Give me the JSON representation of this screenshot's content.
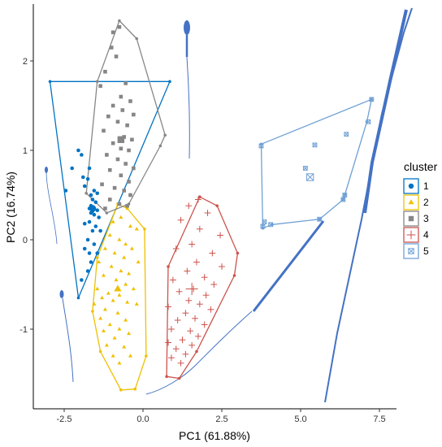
{
  "chart_data": {
    "type": "scatter",
    "title": "",
    "xlabel": "PC1 (61.88%)",
    "ylabel": "PC2 (16.74%)",
    "xlim": [
      -3.4,
      7.9
    ],
    "ylim": [
      -1.85,
      2.5
    ],
    "x_ticks": [
      -2.5,
      0.0,
      2.5,
      5.0,
      7.5
    ],
    "x_tick_labels": [
      "-2.5",
      "0.0",
      "2.5",
      "5.0",
      "7.5"
    ],
    "y_ticks": [
      -1,
      0,
      1,
      2
    ],
    "y_tick_labels": [
      "-1",
      "0",
      "1",
      "2"
    ],
    "grid": false,
    "legend": {
      "title": "cluster",
      "placement": "right"
    },
    "series": [
      {
        "name": "1",
        "color": "#0073C2",
        "marker": "circle",
        "points": [
          [
            -2.05,
            1.0
          ],
          [
            -1.95,
            0.95
          ],
          [
            -2.25,
            0.8
          ],
          [
            -1.7,
            0.8
          ],
          [
            -1.9,
            0.7
          ],
          [
            -1.75,
            0.68
          ],
          [
            -1.85,
            0.6
          ],
          [
            -2.45,
            0.55
          ],
          [
            -1.55,
            0.55
          ],
          [
            -1.45,
            0.52
          ],
          [
            -1.65,
            0.5
          ],
          [
            -1.6,
            0.45
          ],
          [
            -1.5,
            0.42
          ],
          [
            -1.65,
            0.38
          ],
          [
            -1.55,
            0.35
          ],
          [
            -1.7,
            0.35
          ],
          [
            -1.6,
            0.32
          ],
          [
            -1.45,
            0.33
          ],
          [
            -1.65,
            0.3
          ],
          [
            -1.55,
            0.28
          ],
          [
            -1.4,
            0.25
          ],
          [
            -1.7,
            0.2
          ],
          [
            -1.85,
            0.18
          ],
          [
            -1.5,
            0.15
          ],
          [
            -1.6,
            0.1
          ],
          [
            -1.35,
            0.1
          ],
          [
            -1.75,
            0.0
          ],
          [
            -1.55,
            -0.05
          ],
          [
            -1.85,
            -0.1
          ],
          [
            -1.7,
            -0.15
          ],
          [
            -1.45,
            -0.15
          ],
          [
            -1.65,
            -0.25
          ],
          [
            -1.75,
            -0.35
          ],
          [
            -1.95,
            -0.45
          ]
        ],
        "centroid": [
          -1.6,
          0.35
        ],
        "hull": [
          [
            -2.95,
            1.77
          ],
          [
            0.85,
            1.77
          ],
          [
            -2.05,
            -0.65
          ],
          [
            -2.95,
            1.77
          ]
        ]
      },
      {
        "name": "2",
        "color": "#EFC000",
        "marker": "triangle",
        "points": [
          [
            -0.5,
            0.38
          ],
          [
            -0.7,
            0.25
          ],
          [
            -0.95,
            0.2
          ],
          [
            -0.4,
            0.15
          ],
          [
            -0.2,
            0.12
          ],
          [
            -1.05,
            0.05
          ],
          [
            -0.75,
            0.0
          ],
          [
            -0.55,
            -0.05
          ],
          [
            -1.2,
            -0.1
          ],
          [
            -0.35,
            -0.1
          ],
          [
            -0.9,
            -0.15
          ],
          [
            -0.6,
            -0.2
          ],
          [
            -1.4,
            -0.25
          ],
          [
            -0.15,
            -0.25
          ],
          [
            -1.0,
            -0.3
          ],
          [
            -0.7,
            -0.35
          ],
          [
            -0.45,
            -0.38
          ],
          [
            -1.25,
            -0.4
          ],
          [
            -0.85,
            -0.45
          ],
          [
            -0.55,
            -0.5
          ],
          [
            -1.45,
            -0.55
          ],
          [
            -0.3,
            -0.55
          ],
          [
            -1.1,
            -0.6
          ],
          [
            -0.75,
            -0.62
          ],
          [
            -1.3,
            -0.65
          ],
          [
            -0.95,
            -0.68
          ],
          [
            -0.5,
            -0.7
          ],
          [
            -1.55,
            -0.72
          ],
          [
            -0.2,
            -0.72
          ],
          [
            -1.2,
            -0.78
          ],
          [
            -0.8,
            -0.82
          ],
          [
            -1.35,
            -0.88
          ],
          [
            -0.55,
            -0.9
          ],
          [
            -1.05,
            -0.95
          ],
          [
            -0.75,
            -1.0
          ],
          [
            -1.25,
            -1.02
          ],
          [
            -0.45,
            -1.05
          ],
          [
            -0.9,
            -1.1
          ],
          [
            -1.15,
            -1.18
          ],
          [
            -0.6,
            -1.2
          ],
          [
            -0.95,
            -1.3
          ],
          [
            -0.4,
            -1.3
          ],
          [
            -0.75,
            -1.38
          ]
        ],
        "centroid": [
          -0.8,
          -0.55
        ],
        "hull": [
          [
            -0.8,
            0.4
          ],
          [
            -0.5,
            0.35
          ],
          [
            0.05,
            0.12
          ],
          [
            0.1,
            -1.3
          ],
          [
            -0.25,
            -1.67
          ],
          [
            -0.7,
            -1.68
          ],
          [
            -1.35,
            -1.25
          ],
          [
            -1.6,
            -0.8
          ],
          [
            -1.45,
            -0.2
          ],
          [
            -0.8,
            0.4
          ]
        ]
      },
      {
        "name": "3",
        "color": "#868686",
        "marker": "square",
        "points": [
          [
            -0.75,
            2.38
          ],
          [
            -0.95,
            2.32
          ],
          [
            -1.0,
            2.15
          ],
          [
            -0.85,
            2.05
          ],
          [
            -1.2,
            1.88
          ],
          [
            -0.55,
            1.75
          ],
          [
            -1.35,
            1.72
          ],
          [
            -0.7,
            1.6
          ],
          [
            -0.4,
            1.55
          ],
          [
            -0.95,
            1.5
          ],
          [
            -0.65,
            1.45
          ],
          [
            -0.3,
            1.4
          ],
          [
            -1.1,
            1.38
          ],
          [
            -0.8,
            1.32
          ],
          [
            -0.5,
            1.28
          ],
          [
            -1.25,
            1.22
          ],
          [
            -0.6,
            1.15
          ],
          [
            -0.35,
            1.12
          ],
          [
            -0.95,
            1.08
          ],
          [
            -0.7,
            1.02
          ],
          [
            -0.45,
            1.0
          ],
          [
            -1.15,
            0.95
          ],
          [
            -0.8,
            0.9
          ],
          [
            -0.55,
            0.85
          ],
          [
            -0.3,
            0.8
          ],
          [
            -1.05,
            0.78
          ],
          [
            -0.7,
            0.72
          ],
          [
            -0.45,
            0.65
          ],
          [
            -1.3,
            0.62
          ],
          [
            -0.9,
            0.58
          ],
          [
            -0.6,
            0.55
          ],
          [
            -0.4,
            0.5
          ],
          [
            -1.05,
            0.45
          ],
          [
            -0.75,
            0.4
          ],
          [
            -0.5,
            0.38
          ],
          [
            -1.2,
            0.35
          ]
        ],
        "centroid": [
          -0.7,
          1.12
        ],
        "hull": [
          [
            -0.75,
            2.45
          ],
          [
            -0.2,
            2.25
          ],
          [
            0.7,
            1.17
          ],
          [
            0.55,
            1.05
          ],
          [
            -0.45,
            0.4
          ],
          [
            -1.15,
            0.3
          ],
          [
            -1.8,
            0.52
          ],
          [
            -1.45,
            1.77
          ],
          [
            -0.75,
            2.45
          ]
        ]
      },
      {
        "name": "4",
        "color": "#CD534C",
        "marker": "plus",
        "points": [
          [
            1.75,
            0.45
          ],
          [
            1.45,
            0.38
          ],
          [
            2.05,
            0.3
          ],
          [
            1.2,
            0.22
          ],
          [
            1.8,
            0.12
          ],
          [
            2.45,
            0.05
          ],
          [
            1.55,
            -0.05
          ],
          [
            1.05,
            -0.1
          ],
          [
            2.2,
            -0.15
          ],
          [
            1.7,
            -0.25
          ],
          [
            2.5,
            -0.3
          ],
          [
            1.4,
            -0.35
          ],
          [
            1.95,
            -0.42
          ],
          [
            0.95,
            -0.45
          ],
          [
            2.25,
            -0.5
          ],
          [
            1.6,
            -0.55
          ],
          [
            1.15,
            -0.58
          ],
          [
            2.0,
            -0.62
          ],
          [
            1.45,
            -0.68
          ],
          [
            1.8,
            -0.72
          ],
          [
            0.8,
            -0.75
          ],
          [
            2.15,
            -0.78
          ],
          [
            1.35,
            -0.82
          ],
          [
            1.65,
            -0.88
          ],
          [
            1.1,
            -0.9
          ],
          [
            1.95,
            -0.95
          ],
          [
            0.9,
            -1.0
          ],
          [
            1.5,
            -1.02
          ],
          [
            1.75,
            -1.08
          ],
          [
            1.25,
            -1.12
          ],
          [
            0.8,
            -1.15
          ],
          [
            1.55,
            -1.18
          ],
          [
            1.05,
            -1.22
          ],
          [
            1.35,
            -1.28
          ],
          [
            0.9,
            -1.32
          ],
          [
            1.2,
            -1.38
          ]
        ],
        "centroid": [
          1.55,
          -0.55
        ],
        "hull": [
          [
            1.8,
            0.48
          ],
          [
            2.35,
            0.38
          ],
          [
            3.0,
            -0.15
          ],
          [
            2.9,
            -0.4
          ],
          [
            1.7,
            -1.25
          ],
          [
            1.15,
            -1.55
          ],
          [
            0.75,
            -1.53
          ],
          [
            0.8,
            -0.3
          ],
          [
            1.8,
            0.48
          ]
        ]
      },
      {
        "name": "5",
        "color": "#6FA0D5",
        "marker": "square-x",
        "points": [
          [
            7.25,
            1.57
          ],
          [
            7.15,
            1.32
          ],
          [
            6.45,
            1.18
          ],
          [
            5.45,
            1.06
          ],
          [
            5.15,
            0.8
          ],
          [
            3.75,
            1.05
          ],
          [
            6.4,
            0.5
          ],
          [
            6.35,
            0.45
          ],
          [
            5.6,
            0.23
          ],
          [
            4.05,
            0.17
          ],
          [
            3.85,
            0.2
          ],
          [
            3.8,
            0.15
          ]
        ],
        "centroid": [
          5.3,
          0.7
        ],
        "hull": [
          [
            7.25,
            1.57
          ],
          [
            7.1,
            1.32
          ],
          [
            6.4,
            0.5
          ],
          [
            6.35,
            0.45
          ],
          [
            5.6,
            0.23
          ],
          [
            4.1,
            0.17
          ],
          [
            3.8,
            0.13
          ],
          [
            3.75,
            1.07
          ],
          [
            7.25,
            1.57
          ]
        ]
      }
    ]
  }
}
